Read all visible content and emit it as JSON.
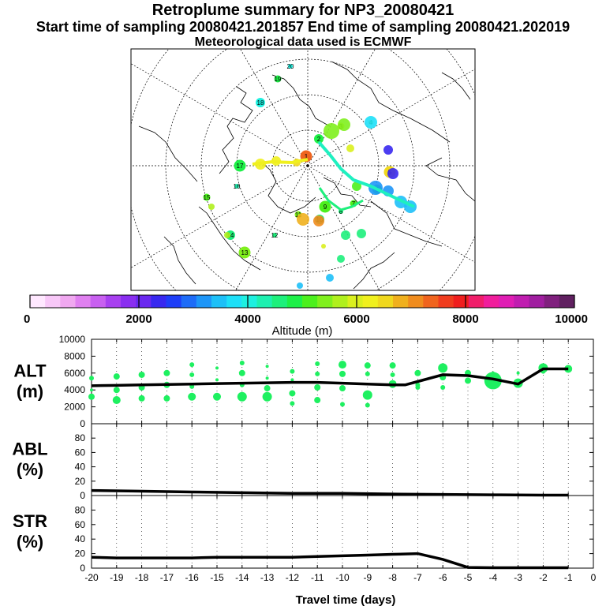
{
  "header": {
    "title": "Retroplume summary for NP3_20080421",
    "line2": "Start time of sampling 20080421.201857     End time of sampling 20080421.202019",
    "line3": "Meteorological data used is ECMWF"
  },
  "map": {
    "projection": "polar stereographic (north pole)",
    "plume_day_labels": [
      "20",
      "19",
      "18",
      "17",
      "16",
      "15",
      "14",
      "13",
      "12",
      "11",
      "10",
      "9",
      "8",
      "7",
      "6",
      "5",
      "4",
      "3",
      "2",
      "1"
    ]
  },
  "colorbar": {
    "label": "Altitude (m)",
    "tick_labels": [
      "0",
      "2000",
      "4000",
      "6000",
      "8000",
      "10000"
    ],
    "colors": [
      "#ffe8ff",
      "#f8c8f8",
      "#f0a8f0",
      "#e080f0",
      "#c860f0",
      "#a840f0",
      "#8a2ef0",
      "#6a28f0",
      "#3828f0",
      "#1e3ef8",
      "#1e6cf8",
      "#1e96f8",
      "#1ec0f8",
      "#1ee0f8",
      "#1ef0e0",
      "#1ef0b0",
      "#1ef07c",
      "#1ef048",
      "#4cf01e",
      "#80f01e",
      "#b0f01e",
      "#daf01e",
      "#f0f01e",
      "#f0d81e",
      "#f0b01e",
      "#f08c1e",
      "#f0641e",
      "#f03c1e",
      "#f01e1e",
      "#f01e6a",
      "#f01e9c",
      "#e01eb4",
      "#c01eb0",
      "#a01ea0",
      "#80207e",
      "#602060"
    ]
  },
  "chart_data": [
    {
      "type": "line+scatter",
      "panel": "ALT",
      "ylabel": "ALT (m)",
      "ylim": [
        0,
        10000
      ],
      "yticks": [
        0,
        2000,
        4000,
        6000,
        8000,
        10000
      ],
      "xlim": [
        -20,
        0
      ],
      "line": {
        "x": [
          -20,
          -19,
          -18,
          -17,
          -16,
          -15,
          -14,
          -13,
          -12,
          -11,
          -10,
          -9,
          -8,
          -7.5,
          -7,
          -6,
          -5,
          -4,
          -3,
          -2,
          -1
        ],
        "y": [
          4500,
          4550,
          4600,
          4650,
          4700,
          4750,
          4800,
          4850,
          4900,
          4900,
          4800,
          4700,
          4600,
          4600,
          5000,
          5800,
          5700,
          5300,
          4700,
          6500,
          6500
        ]
      },
      "scatter_points": [
        [
          -20,
          5400,
          3
        ],
        [
          -20,
          4000,
          2
        ],
        [
          -20,
          3200,
          4
        ],
        [
          -19,
          5600,
          4
        ],
        [
          -19,
          4000,
          4
        ],
        [
          -19,
          2800,
          5
        ],
        [
          -18,
          5800,
          4
        ],
        [
          -18,
          4300,
          4
        ],
        [
          -18,
          3000,
          4
        ],
        [
          -17,
          6000,
          4
        ],
        [
          -17,
          4600,
          4
        ],
        [
          -17,
          3000,
          4
        ],
        [
          -16,
          7000,
          3
        ],
        [
          -16,
          5800,
          3
        ],
        [
          -16,
          4400,
          3
        ],
        [
          -16,
          3200,
          5
        ],
        [
          -15,
          6600,
          2
        ],
        [
          -15,
          5200,
          2
        ],
        [
          -15,
          3200,
          5
        ],
        [
          -14,
          7200,
          3
        ],
        [
          -14,
          6000,
          4
        ],
        [
          -14,
          4600,
          3
        ],
        [
          -14,
          3200,
          6
        ],
        [
          -13,
          6800,
          2
        ],
        [
          -13,
          5400,
          2
        ],
        [
          -13,
          4200,
          4
        ],
        [
          -13,
          3200,
          6
        ],
        [
          -12,
          6200,
          3
        ],
        [
          -12,
          5200,
          2
        ],
        [
          -12,
          3600,
          4
        ],
        [
          -12,
          2400,
          3
        ],
        [
          -11,
          7100,
          3
        ],
        [
          -11,
          5900,
          3
        ],
        [
          -11,
          4300,
          4
        ],
        [
          -11,
          2800,
          4
        ],
        [
          -10,
          7000,
          5
        ],
        [
          -10,
          5900,
          4
        ],
        [
          -10,
          4200,
          4
        ],
        [
          -10,
          2300,
          3
        ],
        [
          -9,
          6900,
          4
        ],
        [
          -9,
          5900,
          3
        ],
        [
          -9,
          3400,
          6
        ],
        [
          -9,
          2200,
          3
        ],
        [
          -8,
          6900,
          4
        ],
        [
          -8,
          5800,
          3
        ],
        [
          -8,
          4700,
          5
        ],
        [
          -7,
          6000,
          4
        ],
        [
          -7,
          4600,
          3
        ],
        [
          -7,
          4300,
          3
        ],
        [
          -6,
          6600,
          6
        ],
        [
          -6,
          5500,
          4
        ],
        [
          -6,
          4300,
          3
        ],
        [
          -5,
          6000,
          4
        ],
        [
          -5,
          5100,
          4
        ],
        [
          -4,
          5100,
          11
        ],
        [
          -4,
          6000,
          2
        ],
        [
          -3,
          6000,
          2
        ],
        [
          -3,
          4800,
          6
        ],
        [
          -2,
          6600,
          6
        ],
        [
          -2,
          6200,
          3
        ],
        [
          -1,
          6500,
          5
        ]
      ],
      "point_color": "#1ef060"
    },
    {
      "type": "line",
      "panel": "ABL",
      "ylabel": "ABL (%)",
      "ylim": [
        0,
        100
      ],
      "yticks": [
        0,
        20,
        40,
        60,
        80
      ],
      "xlim": [
        -20,
        0
      ],
      "x": [
        -20,
        -18,
        -16,
        -14,
        -12,
        -10,
        -8,
        -6,
        -4,
        -2,
        -1
      ],
      "y": [
        7,
        6,
        5,
        4,
        3,
        3,
        2,
        1.5,
        1,
        0.5,
        0.5
      ]
    },
    {
      "type": "line",
      "panel": "STR",
      "ylabel": "STR (%)",
      "ylim": [
        0,
        100
      ],
      "yticks": [
        0,
        20,
        40,
        60,
        80
      ],
      "xlim": [
        -20,
        0
      ],
      "x": [
        -20,
        -19,
        -18,
        -17,
        -16,
        -15,
        -14,
        -13,
        -12,
        -11,
        -10,
        -9,
        -8,
        -7,
        -6,
        -5,
        -4,
        -3,
        -2,
        -1
      ],
      "y": [
        15,
        14,
        14,
        14,
        14,
        15,
        15,
        15,
        15,
        16,
        17,
        18,
        19,
        20,
        12,
        1,
        0.5,
        0.5,
        0.5,
        0.5
      ],
      "xlabel": "Travel time (days)",
      "xtick_labels": [
        "-20",
        "-19",
        "-18",
        "-17",
        "-16",
        "-15",
        "-14",
        "-13",
        "-12",
        "-11",
        "-10",
        "-9",
        "-8",
        "-7",
        "-6",
        "-5",
        "-4",
        "-3",
        "-2",
        "-1",
        "0"
      ]
    }
  ]
}
